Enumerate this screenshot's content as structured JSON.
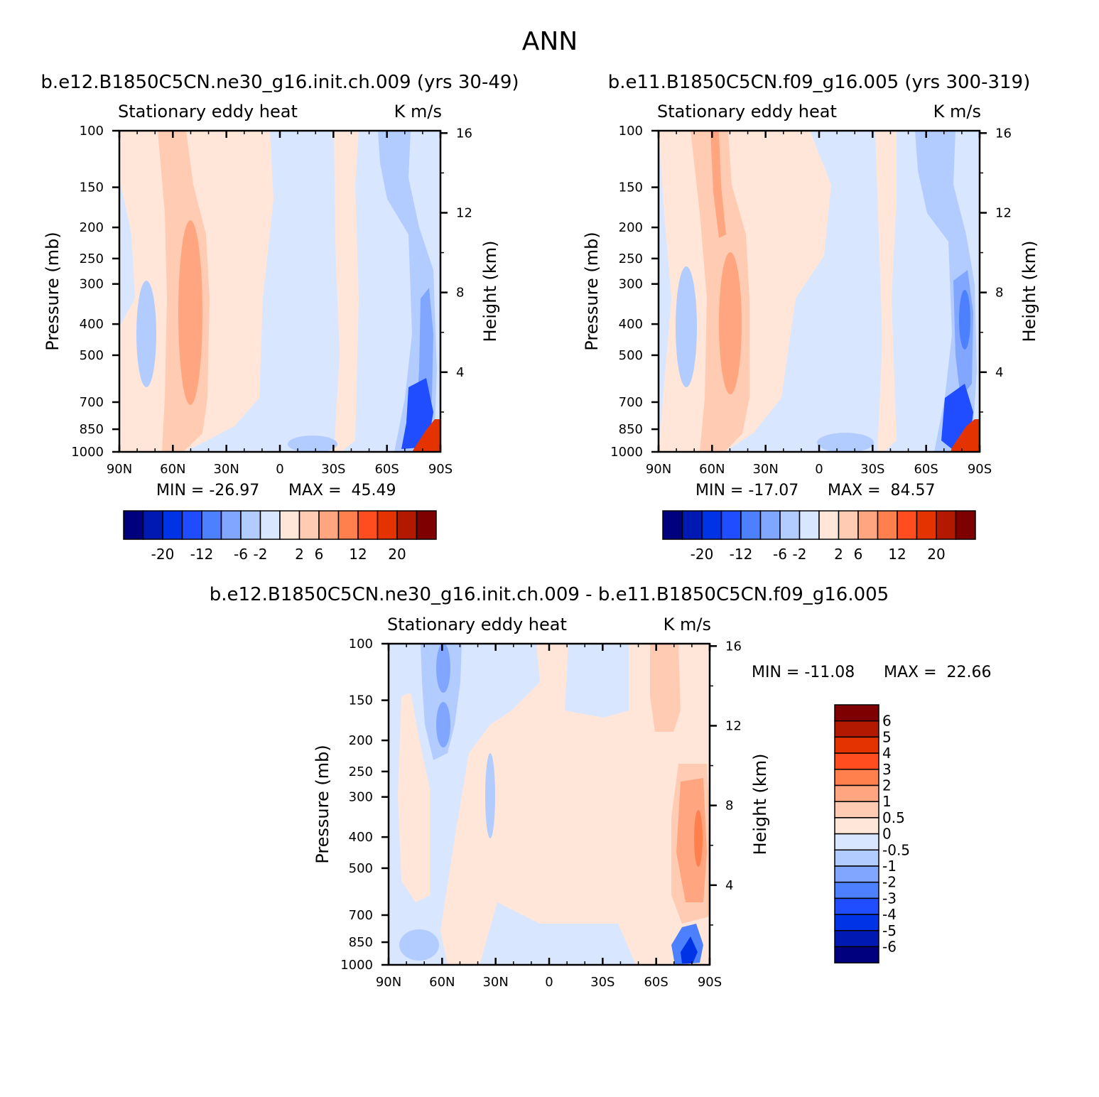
{
  "figure": {
    "title": "ANN"
  },
  "colors": {
    "div16": [
      "#00007f",
      "#0019b2",
      "#0033e5",
      "#1f4dff",
      "#4d80ff",
      "#80a6ff",
      "#b3ccff",
      "#d9e6ff",
      "#ffe6d9",
      "#ffccb3",
      "#ffa680",
      "#ff804d",
      "#ff4d1f",
      "#e53300",
      "#b21900",
      "#7f0000"
    ],
    "text": "#000000"
  },
  "chart_data": [
    {
      "type": "contour",
      "title": "b.e12.B1850C5CN.ne30_g16.init.ch.009 (yrs 30-49)",
      "left_string": "Stationary eddy heat",
      "right_string": "K m/s",
      "ylabel": "Pressure (mb)",
      "y2label": "Height (km)",
      "x_ticks": [
        "90N",
        "60N",
        "30N",
        "0",
        "30S",
        "60S",
        "90S"
      ],
      "y_ticks": [
        "100",
        "150",
        "200",
        "250",
        "300",
        "400",
        "500",
        "700",
        "850",
        "1000"
      ],
      "y2_ticks": [
        "16",
        "12",
        "8",
        "4"
      ],
      "ylim": [
        1000,
        100
      ],
      "min_label": "MIN = -26.97",
      "max_label": "MAX =  45.49",
      "min": -26.97,
      "max": 45.49,
      "levels": [
        "-20",
        "-12",
        "-6",
        "-2",
        "2",
        "6",
        "12",
        "20"
      ],
      "features": [
        {
          "lat": 51,
          "p": 400,
          "value": 6
        },
        {
          "lat": 75,
          "p": 400,
          "value": -2
        },
        {
          "lat": -75,
          "p": 650,
          "value": -12
        },
        {
          "lat": -83,
          "p": 950,
          "value": 20
        }
      ]
    },
    {
      "type": "contour",
      "title": "b.e11.B1850C5CN.f09_g16.005 (yrs 300-319)",
      "left_string": "Stationary eddy heat",
      "right_string": "K m/s",
      "ylabel": "Pressure (mb)",
      "y2label": "Height (km)",
      "x_ticks": [
        "90N",
        "60N",
        "30N",
        "0",
        "30S",
        "60S",
        "90S"
      ],
      "y_ticks": [
        "100",
        "150",
        "200",
        "250",
        "300",
        "400",
        "500",
        "700",
        "850",
        "1000"
      ],
      "y2_ticks": [
        "16",
        "12",
        "8",
        "4"
      ],
      "ylim": [
        1000,
        100
      ],
      "min_label": "MIN = -17.07",
      "max_label": "MAX =  84.57",
      "min": -17.07,
      "max": 84.57,
      "levels": [
        "-20",
        "-12",
        "-6",
        "-2",
        "2",
        "6",
        "12",
        "20"
      ],
      "features": [
        {
          "lat": 50,
          "p": 400,
          "value": 6
        },
        {
          "lat": 75,
          "p": 400,
          "value": -2
        },
        {
          "lat": -72,
          "p": 400,
          "value": -6
        },
        {
          "lat": -80,
          "p": 950,
          "value": 20
        }
      ]
    },
    {
      "type": "contour",
      "title": "b.e12.B1850C5CN.ne30_g16.init.ch.009 - b.e11.B1850C5CN.f09_g16.005",
      "left_string": "Stationary eddy heat",
      "right_string": "K m/s",
      "ylabel": "Pressure (mb)",
      "y2label": "Height (km)",
      "x_ticks": [
        "90N",
        "60N",
        "30N",
        "0",
        "30S",
        "60S",
        "90S"
      ],
      "y_ticks": [
        "100",
        "150",
        "200",
        "250",
        "300",
        "400",
        "500",
        "700",
        "850",
        "1000"
      ],
      "y2_ticks": [
        "16",
        "12",
        "8",
        "4"
      ],
      "ylim": [
        1000,
        100
      ],
      "min_label": "MIN = -11.08",
      "max_label": "MAX =  22.66",
      "min": -11.08,
      "max": 22.66,
      "levels": [
        "6",
        "5",
        "4",
        "3",
        "2",
        "1",
        "0.5",
        "0",
        "-0.5",
        "-1",
        "-2",
        "-3",
        "-4",
        "-5",
        "-6"
      ],
      "features": [
        {
          "lat": 60,
          "p": 200,
          "value": -2
        },
        {
          "lat": -75,
          "p": 400,
          "value": 2
        },
        {
          "lat": 85,
          "p": 400,
          "value": 1
        },
        {
          "lat": -78,
          "p": 900,
          "value": -6
        }
      ]
    }
  ]
}
